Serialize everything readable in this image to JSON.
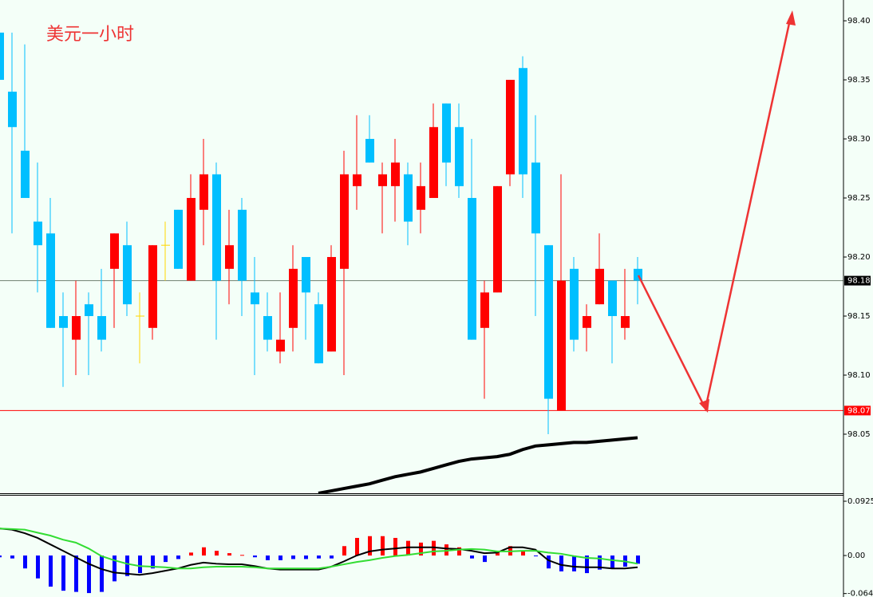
{
  "chart_data": [
    {
      "type": "candlestick",
      "title": "美元一小时",
      "open": [
        98.39,
        98.34,
        98.29,
        98.23,
        98.22,
        98.15,
        98.13,
        98.16,
        98.15,
        98.19,
        98.21,
        98.15,
        98.14,
        98.21,
        98.24,
        98.18,
        98.24,
        98.27,
        98.19,
        98.24,
        98.17,
        98.15,
        98.12,
        98.14,
        98.2,
        98.16,
        98.12,
        98.19,
        98.26,
        98.3,
        98.26,
        98.26,
        98.27,
        98.24,
        98.25,
        98.33,
        98.31,
        98.25,
        98.14,
        98.17,
        98.27,
        98.36,
        98.28,
        98.21,
        98.07,
        98.19,
        98.14,
        98.16,
        98.18,
        98.14,
        98.19
      ],
      "high": [
        98.39,
        98.39,
        98.38,
        98.28,
        98.25,
        98.17,
        98.18,
        98.17,
        98.19,
        98.22,
        98.23,
        98.17,
        98.21,
        98.23,
        98.24,
        98.27,
        98.3,
        98.28,
        98.24,
        98.25,
        98.2,
        98.17,
        98.17,
        98.21,
        98.2,
        98.17,
        98.21,
        98.29,
        98.32,
        98.32,
        98.28,
        98.3,
        98.28,
        98.28,
        98.33,
        98.33,
        98.33,
        98.3,
        98.18,
        98.26,
        98.35,
        98.37,
        98.32,
        98.21,
        98.27,
        98.2,
        98.16,
        98.22,
        98.18,
        98.19,
        98.2
      ],
      "low": [
        98.35,
        98.22,
        98.25,
        98.17,
        98.14,
        98.09,
        98.1,
        98.1,
        98.12,
        98.14,
        98.15,
        98.11,
        98.13,
        98.18,
        98.19,
        98.18,
        98.21,
        98.13,
        98.16,
        98.15,
        98.1,
        98.12,
        98.11,
        98.12,
        98.13,
        98.11,
        98.12,
        98.1,
        98.24,
        98.28,
        98.22,
        98.23,
        98.21,
        98.22,
        98.25,
        98.26,
        98.25,
        98.13,
        98.08,
        98.17,
        98.26,
        98.25,
        98.15,
        98.05,
        98.07,
        98.12,
        98.12,
        98.16,
        98.11,
        98.13,
        98.16
      ],
      "close": [
        98.35,
        98.31,
        98.25,
        98.21,
        98.14,
        98.14,
        98.15,
        98.15,
        98.13,
        98.22,
        98.16,
        98.15,
        98.21,
        98.21,
        98.19,
        98.25,
        98.27,
        98.18,
        98.21,
        98.18,
        98.16,
        98.13,
        98.13,
        98.19,
        98.17,
        98.11,
        98.2,
        98.27,
        98.27,
        98.28,
        98.27,
        98.28,
        98.23,
        98.26,
        98.31,
        98.28,
        98.26,
        98.13,
        98.17,
        98.26,
        98.35,
        98.27,
        98.22,
        98.08,
        98.18,
        98.13,
        98.15,
        98.19,
        98.15,
        98.15,
        98.18
      ],
      "up_color": "#ff0000",
      "down_color": "#00bfff",
      "doji_color": "#ffd700",
      "ma": {
        "color": "#000000",
        "values": [
          null,
          null,
          null,
          null,
          null,
          null,
          null,
          null,
          null,
          null,
          null,
          null,
          null,
          null,
          null,
          null,
          null,
          null,
          null,
          null,
          null,
          null,
          null,
          null,
          null,
          98.0,
          98.002,
          98.004,
          98.006,
          98.008,
          98.011,
          98.014,
          98.016,
          98.018,
          98.021,
          98.024,
          98.027,
          98.029,
          98.03,
          98.031,
          98.033,
          98.037,
          98.04,
          98.041,
          98.042,
          98.043,
          98.043,
          98.044,
          98.045,
          98.046,
          98.047
        ]
      },
      "price_lines": [
        {
          "value": 98.18,
          "color": "#708070",
          "label_bg": "#000000"
        },
        {
          "value": 98.07,
          "color": "#ff0000",
          "label_bg": "#ff0000"
        }
      ],
      "ylim": [
        98.0,
        98.4176
      ],
      "yticks": [
        {
          "value": 98.4,
          "label": "98.40"
        },
        98.35,
        {
          "value": 98.3,
          "label": "98.30"
        },
        98.25,
        {
          "value": 98.2,
          "label": "98.20"
        },
        98.15,
        {
          "value": 98.1,
          "label": "98.10"
        },
        98.05
      ]
    },
    {
      "type": "macd",
      "histogram": {
        "up_color": "#ff0000",
        "down_color": "#0000ff",
        "values": [
          -0.003,
          -0.005,
          -0.022,
          -0.039,
          -0.053,
          -0.06,
          -0.062,
          -0.064,
          -0.062,
          -0.044,
          -0.035,
          -0.03,
          -0.022,
          -0.011,
          -0.006,
          0.005,
          0.014,
          0.008,
          0.004,
          0.001,
          -0.003,
          -0.008,
          -0.008,
          -0.006,
          -0.006,
          -0.005,
          -0.005,
          0.016,
          0.03,
          0.033,
          0.033,
          0.03,
          0.025,
          0.022,
          0.025,
          0.019,
          0.014,
          -0.005,
          -0.011,
          0.008,
          0.016,
          0.008,
          -0.001,
          -0.022,
          -0.027,
          -0.027,
          -0.03,
          -0.024,
          -0.022,
          -0.019,
          -0.014
        ]
      },
      "series": [
        {
          "color": "#000000",
          "values": [
            0.046,
            0.044,
            0.038,
            0.03,
            0.019,
            0.008,
            -0.003,
            -0.014,
            -0.023,
            -0.029,
            -0.031,
            -0.033,
            -0.03,
            -0.026,
            -0.022,
            -0.016,
            -0.012,
            -0.014,
            -0.015,
            -0.015,
            -0.018,
            -0.022,
            -0.024,
            -0.024,
            -0.024,
            -0.024,
            -0.019,
            -0.01,
            0.0,
            0.007,
            0.01,
            0.012,
            0.014,
            0.014,
            0.014,
            0.012,
            0.011,
            0.008,
            0.004,
            0.005,
            0.014,
            0.014,
            0.01,
            -0.008,
            -0.016,
            -0.019,
            -0.02,
            -0.02,
            -0.022,
            -0.022,
            -0.02
          ]
        },
        {
          "color": "#33dd33",
          "values": [
            0.046,
            0.045,
            0.044,
            0.039,
            0.034,
            0.027,
            0.022,
            0.012,
            -0.001,
            -0.008,
            -0.014,
            -0.018,
            -0.019,
            -0.02,
            -0.022,
            -0.022,
            -0.02,
            -0.019,
            -0.019,
            -0.019,
            -0.02,
            -0.022,
            -0.022,
            -0.022,
            -0.022,
            -0.022,
            -0.019,
            -0.015,
            -0.011,
            -0.008,
            -0.004,
            -0.001,
            0.001,
            0.004,
            0.007,
            0.008,
            0.01,
            0.011,
            0.01,
            0.007,
            0.007,
            0.008,
            0.008,
            0.005,
            0.003,
            -0.001,
            -0.004,
            -0.005,
            -0.008,
            -0.01,
            -0.014
          ]
        }
      ],
      "ylim": [
        -0.0707,
        0.1034
      ],
      "yticks": [
        0.0925,
        {
          "value": 0,
          "label": "0.00"
        },
        -0.0648
      ]
    }
  ]
}
